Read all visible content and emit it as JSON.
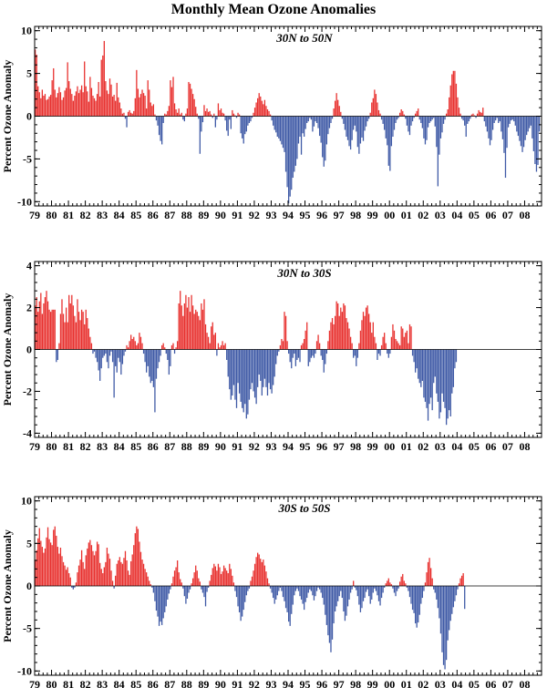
{
  "title": "Monthly Mean Ozone Anomalies",
  "colors": {
    "positive": "#e8312f",
    "negative": "#3f5aa6",
    "frame": "#000000"
  },
  "chart_data": [
    {
      "type": "bar",
      "label": "30N to 50N",
      "ylabel": "Percent Ozone Anomaly",
      "ylim": [
        -10.5,
        10.5
      ],
      "yticks": [
        -10,
        -5,
        0,
        5,
        10
      ],
      "xlim": [
        1979,
        2009
      ],
      "xticks": [
        "79",
        "80",
        "81",
        "82",
        "83",
        "84",
        "85",
        "86",
        "87",
        "88",
        "89",
        "90",
        "91",
        "92",
        "93",
        "94",
        "95",
        "96",
        "97",
        "98",
        "99",
        "00",
        "01",
        "02",
        "03",
        "04",
        "05",
        "06",
        "07",
        "08"
      ],
      "x_start": "1979-01",
      "monthly_values": [
        7.8,
        7.2,
        3.5,
        2.8,
        2.1,
        3.1,
        2.4,
        2.6,
        1.9,
        2.0,
        2.3,
        2.5,
        4.2,
        5.6,
        3.1,
        2.2,
        2.7,
        3.4,
        2.8,
        1.9,
        2.2,
        3.0,
        3.3,
        6.3,
        4.1,
        3.2,
        2.6,
        1.8,
        2.4,
        2.9,
        3.5,
        2.7,
        3.1,
        3.6,
        2.8,
        6.4,
        3.5,
        2.9,
        1.7,
        4.6,
        3.3,
        2.4,
        2.1,
        1.8,
        2.6,
        4.0,
        2.3,
        6.6,
        7.1,
        8.8,
        4.1,
        3.0,
        2.6,
        4.4,
        3.7,
        2.3,
        2.5,
        1.8,
        3.9,
        2.2,
        1.6,
        0.9,
        0.3,
        0.4,
        -0.3,
        -1.3,
        0.5,
        0.7,
        0.4,
        0.3,
        0.6,
        2.1,
        5.4,
        3.2,
        2.2,
        2.6,
        3.1,
        2.7,
        2.4,
        0.9,
        4.2,
        3.1,
        1.6,
        1.2,
        1.4,
        0.2,
        -0.5,
        -1.1,
        -2.2,
        -2.9,
        -3.3,
        -0.8,
        0.3,
        0.2,
        0.6,
        1.2,
        4.2,
        3.4,
        4.6,
        1.5,
        0.8,
        0.4,
        0.9,
        0.2,
        0.4,
        -0.4,
        -0.6,
        0.3,
        0.9,
        4.0,
        3.8,
        3.2,
        2.6,
        2.0,
        1.1,
        0.3,
        -0.3,
        -4.4,
        -1.8,
        -0.7,
        1.3,
        0.6,
        0.9,
        0.5,
        0.6,
        0.2,
        -0.2,
        0.3,
        -1.3,
        -0.4,
        1.5,
        0.7,
        0.9,
        0.4,
        0.3,
        -0.5,
        -1.7,
        -2.3,
        -0.4,
        -1.5,
        0.7,
        0.3,
        0.1,
        -0.2,
        0.4,
        0.2,
        -2.0,
        -2.6,
        -3.2,
        -2.1,
        -1.8,
        -1.1,
        -0.8,
        -0.6,
        -0.2,
        0.4,
        1.0,
        1.6,
        2.1,
        2.7,
        2.3,
        1.8,
        1.4,
        1.9,
        1.2,
        0.8,
        0.6,
        0.2,
        -0.5,
        -1.1,
        -1.6,
        -1.9,
        -2.4,
        -2.6,
        -2.9,
        -3.3,
        -3.7,
        -4.2,
        -6.5,
        -8.3,
        -10.2,
        -9.4,
        -8.6,
        -7.2,
        -6.5,
        -5.8,
        -5.0,
        -3.2,
        -2.4,
        -4.5,
        -2.0,
        -2.4,
        -1.5,
        -0.8,
        -0.6,
        -0.2,
        -0.4,
        -1.8,
        -1.2,
        -0.6,
        -0.8,
        -1.4,
        -2.3,
        -3.1,
        -4.8,
        -5.9,
        -5.2,
        -3.3,
        -2.1,
        -1.4,
        -0.8,
        -0.3,
        0.9,
        1.8,
        2.7,
        1.9,
        1.2,
        0.5,
        -0.3,
        -0.9,
        -1.6,
        -2.4,
        -2.8,
        -3.5,
        -3.9,
        -2.8,
        -1.6,
        -1.1,
        -1.8,
        -3.6,
        -4.4,
        -3.2,
        -2.5,
        -2.9,
        -1.7,
        -1.2,
        -0.6,
        -0.3,
        0.4,
        1.6,
        2.1,
        3.1,
        2.6,
        1.6,
        0.7,
        0.3,
        -0.4,
        -0.9,
        -1.6,
        -2.6,
        -3.4,
        -5.8,
        -6.4,
        -3.5,
        -2.4,
        -1.6,
        -0.8,
        -0.4,
        -0.2,
        0.4,
        0.8,
        0.6,
        0.2,
        -0.3,
        -1.1,
        -1.8,
        -2.2,
        -1.1,
        -0.6,
        -0.2,
        0.3,
        0.6,
        0.9,
        -0.4,
        -0.8,
        -1.4,
        -2.6,
        -3.3,
        -2.8,
        -1.3,
        -0.8,
        -0.6,
        -0.4,
        -0.2,
        -1.2,
        -3.6,
        -8.2,
        -4.5,
        -2.6,
        -1.9,
        -0.9,
        -0.4,
        0.3,
        0.8,
        2.2,
        3.6,
        4.9,
        5.3,
        5.3,
        3.8,
        2.2,
        1.0,
        0.3,
        -0.3,
        -0.5,
        -1.1,
        -2.4,
        -0.9,
        -0.6,
        -0.3,
        0.2,
        0.3,
        0.1,
        -0.2,
        0.3,
        0.7,
        0.5,
        0.4,
        1.0,
        -0.6,
        -1.2,
        -1.8,
        -2.6,
        -3.4,
        -2.8,
        -1.6,
        -0.8,
        -0.5,
        -0.2,
        -0.8,
        -0.6,
        -1.8,
        -2.7,
        -4.3,
        -7.2,
        -3.7,
        -1.3,
        -0.9,
        -0.5,
        -0.4,
        -0.6,
        -1.1,
        -1.8,
        -2.3,
        -2.9,
        -3.5,
        -4.2,
        -3.6,
        -2.8,
        -2.2,
        -1.8,
        -1.4,
        -1.1,
        -2.6,
        -4.1,
        -5.6,
        -6.5,
        -5.7,
        -1.8
      ]
    },
    {
      "type": "bar",
      "label": "30N to 30S",
      "ylabel": "Percent Ozone Anomaly",
      "ylim": [
        -4.2,
        4.2
      ],
      "yticks": [
        -4,
        -2,
        0,
        2,
        4
      ],
      "xlim": [
        1979,
        2009
      ],
      "xticks": [
        "79",
        "80",
        "81",
        "82",
        "83",
        "84",
        "85",
        "86",
        "87",
        "88",
        "89",
        "90",
        "91",
        "92",
        "93",
        "94",
        "95",
        "96",
        "97",
        "98",
        "99",
        "00",
        "01",
        "02",
        "03",
        "04",
        "05",
        "06",
        "07",
        "08"
      ],
      "x_start": "1979-01",
      "monthly_values": [
        2.1,
        2.5,
        1.8,
        2.3,
        2.7,
        1.7,
        2.2,
        2.5,
        2.8,
        2.3,
        1.9,
        1.8,
        1.9,
        1.9,
        1.9,
        -0.6,
        -0.5,
        0.3,
        1.7,
        2.4,
        1.7,
        1.3,
        2.0,
        1.3,
        2.6,
        2.2,
        2.6,
        2.1,
        1.6,
        1.3,
        2.4,
        1.8,
        1.4,
        1.9,
        1.8,
        1.2,
        1.9,
        1.5,
        1.0,
        0.6,
        0.3,
        -0.2,
        -0.1,
        -0.4,
        -0.6,
        -1.0,
        -1.5,
        -0.9,
        -0.4,
        -0.3,
        -0.2,
        -0.6,
        -0.9,
        -0.3,
        -0.1,
        -0.6,
        -2.3,
        -0.8,
        -1.1,
        -0.4,
        -0.6,
        -1.2,
        -0.7,
        -0.3,
        -0.1,
        0.2,
        0.1,
        0.4,
        0.7,
        0.5,
        0.6,
        0.4,
        0.2,
        0.3,
        0.8,
        0.6,
        0.3,
        -0.2,
        -0.6,
        -1.1,
        -0.8,
        -1.3,
        -1.6,
        -1.5,
        -1.8,
        -3.0,
        -1.4,
        -0.9,
        -0.6,
        -0.3,
        0.2,
        0.3,
        0.1,
        -0.2,
        -0.5,
        -1.2,
        -0.8,
        0.2,
        0.3,
        -0.2,
        0.1,
        0.4,
        2.2,
        2.8,
        2.1,
        1.6,
        2.2,
        2.6,
        2.0,
        2.5,
        1.8,
        2.6,
        2.1,
        1.7,
        1.9,
        1.8,
        1.6,
        1.4,
        2.2,
        1.9,
        2.4,
        1.2,
        0.8,
        0.6,
        0.3,
        1.1,
        1.3,
        0.7,
        0.8,
        -0.3,
        0.3,
        0.1,
        0.2,
        0.4,
        0.2,
        0.3,
        -0.5,
        -1.3,
        -1.9,
        -2.4,
        -2.2,
        -1.7,
        -2.4,
        -2.8,
        -1.6,
        -2.1,
        -2.5,
        -2.8,
        -3.0,
        -2.6,
        -3.3,
        -3.1,
        -2.4,
        -1.9,
        -1.6,
        -2.0,
        -2.3,
        -2.6,
        -1.8,
        -1.2,
        -1.5,
        -2.2,
        -1.8,
        -1.4,
        -1.8,
        -2.2,
        -1.6,
        -1.9,
        -2.1,
        -1.7,
        -1.3,
        -0.7,
        -0.3,
        -0.1,
        0.2,
        0.5,
        0.4,
        1.8,
        1.6,
        0.4,
        -0.2,
        -0.6,
        -0.9,
        -0.4,
        -0.2,
        -0.8,
        -0.5,
        -0.4,
        -0.6,
        0.2,
        0.3,
        0.5,
        0.9,
        1.3,
        -0.8,
        -0.6,
        -0.4,
        -0.3,
        -0.4,
        -0.2,
        0.4,
        0.7,
        0.3,
        -0.3,
        -0.5,
        -1.1,
        -0.7,
        -0.2,
        0.4,
        0.9,
        1.3,
        1.5,
        1.2,
        1.6,
        2.3,
        2.2,
        1.6,
        2.0,
        1.8,
        2.2,
        2.1,
        1.5,
        1.3,
        1.0,
        0.6,
        0.3,
        -0.4,
        -0.3,
        -0.8,
        -0.4,
        0.3,
        0.9,
        1.4,
        1.8,
        1.6,
        2.0,
        2.1,
        1.7,
        1.3,
        0.8,
        1.3,
        0.6,
        0.3,
        -0.5,
        -0.2,
        -0.3,
        0.2,
        0.6,
        0.8,
        0.3,
        -0.2,
        -0.4,
        -0.2,
        0.6,
        1.2,
        0.9,
        0.5,
        0.4,
        0.3,
        0.2,
        1.1,
        1.0,
        0.6,
        0.8,
        0.9,
        0.3,
        1.2,
        1.1,
        -0.3,
        -0.6,
        -1.1,
        -0.9,
        -1.4,
        -1.6,
        -1.8,
        -1.5,
        -2.3,
        -2.5,
        -2.8,
        -3.4,
        -2.6,
        -2.3,
        -2.9,
        -1.6,
        -1.3,
        -2.1,
        -2.5,
        -3.3,
        -3.0,
        -2.1,
        -2.5,
        -2.8,
        -3.6,
        -3.3,
        -2.9,
        -3.2,
        -2.1,
        -1.8,
        -0.9,
        -0.6
      ]
    },
    {
      "type": "bar",
      "label": "30S to 50S",
      "ylabel": "Percent Ozone Anomaly",
      "ylim": [
        -10.5,
        10.5
      ],
      "yticks": [
        -10,
        -5,
        0,
        5,
        10
      ],
      "xlim": [
        1979,
        2009
      ],
      "xticks": [
        "79",
        "80",
        "81",
        "82",
        "83",
        "84",
        "85",
        "86",
        "87",
        "88",
        "89",
        "90",
        "91",
        "92",
        "93",
        "94",
        "95",
        "96",
        "97",
        "98",
        "99",
        "00",
        "01",
        "02",
        "03",
        "04",
        "05",
        "06",
        "07",
        "08"
      ],
      "x_start": "1979-01",
      "monthly_values": [
        3.1,
        4.2,
        5.6,
        6.8,
        5.3,
        4.6,
        3.9,
        4.4,
        5.7,
        6.9,
        5.5,
        5.1,
        4.8,
        6.6,
        7.0,
        5.9,
        4.6,
        3.8,
        4.5,
        3.5,
        2.8,
        2.4,
        1.9,
        2.2,
        1.5,
        1.0,
        -0.2,
        -0.4,
        -0.2,
        0.4,
        1.6,
        2.4,
        3.1,
        4.2,
        2.8,
        2.0,
        3.6,
        4.4,
        5.1,
        5.4,
        4.8,
        4.1,
        3.6,
        4.1,
        5.2,
        4.9,
        2.7,
        2.0,
        1.5,
        2.2,
        2.8,
        4.5,
        3.8,
        3.2,
        1.8,
        0.6,
        -0.3,
        1.2,
        2.6,
        3.0,
        3.4,
        2.8,
        2.6,
        3.3,
        4.1,
        3.0,
        1.8,
        1.3,
        2.9,
        3.7,
        4.8,
        6.2,
        7.0,
        6.7,
        5.2,
        4.0,
        3.1,
        2.6,
        2.0,
        1.6,
        1.1,
        0.6,
        0.2,
        -0.2,
        -0.8,
        -1.8,
        -2.9,
        -3.6,
        -4.7,
        -4.2,
        -4.6,
        -3.8,
        -3.1,
        -2.4,
        -1.6,
        -0.9,
        -0.4,
        0.3,
        1.1,
        1.8,
        2.2,
        3.0,
        1.6,
        0.8,
        0.4,
        -0.3,
        -1.2,
        -2.1,
        -1.5,
        -0.8,
        -0.4,
        0.3,
        0.9,
        1.6,
        2.4,
        1.8,
        0.9,
        0.5,
        -0.4,
        -0.8,
        -1.3,
        -2.4,
        -0.7,
        -0.2,
        0.6,
        1.3,
        2.1,
        2.6,
        2.3,
        1.8,
        2.6,
        2.2,
        1.4,
        1.7,
        2.4,
        2.1,
        1.8,
        1.5,
        2.6,
        2.0,
        1.2,
        0.4,
        -0.6,
        -1.3,
        -2.4,
        -3.1,
        -4.1,
        -3.6,
        -2.8,
        -1.9,
        -1.1,
        -0.6,
        -0.3,
        0.6,
        1.1,
        1.8,
        2.6,
        3.4,
        3.9,
        3.7,
        3.2,
        2.8,
        3.1,
        2.4,
        1.7,
        0.9,
        0.3,
        -0.3,
        -0.8,
        -1.4,
        -2.1,
        -1.6,
        -1.1,
        -0.6,
        -0.2,
        -0.6,
        -1.3,
        -1.8,
        -2.6,
        -3.1,
        -4.2,
        -4.7,
        -3.3,
        -2.2,
        -1.1,
        -0.6,
        -0.3,
        -0.6,
        -1.2,
        -1.6,
        -2.1,
        -2.8,
        -1.9,
        -1.4,
        -0.8,
        -0.4,
        -0.6,
        -1.1,
        -1.7,
        -1.2,
        -0.6,
        -0.2,
        -0.4,
        -0.8,
        -1.4,
        -2.2,
        -3.4,
        -4.6,
        -5.8,
        -6.7,
        -7.8,
        -6.3,
        -4.4,
        -3.0,
        -2.4,
        -1.8,
        -1.2,
        -0.6,
        -1.4,
        -3.0,
        -4.1,
        -3.5,
        -2.4,
        -1.6,
        -0.8,
        -0.4,
        0.6,
        -0.2,
        -0.5,
        -1.2,
        -2.2,
        -3.1,
        -2.6,
        -1.8,
        -1.4,
        -0.7,
        -0.4,
        -1.2,
        -2.1,
        -1.6,
        -0.8,
        -0.3,
        -0.6,
        -1.1,
        -1.8,
        -2.3,
        -1.4,
        -0.8,
        -0.2,
        0.3,
        0.6,
        0.9,
        0.4,
        0.2,
        -0.3,
        -0.8,
        -1.2,
        -0.6,
        -0.3,
        0.5,
        1.1,
        1.4,
        0.6,
        0.3,
        -0.2,
        -0.6,
        -1.3,
        -2.1,
        -2.8,
        -3.2,
        -4.4,
        -4.9,
        -4.3,
        -3.4,
        -2.1,
        -1.4,
        -0.6,
        0.4,
        1.6,
        2.8,
        3.3,
        2.1,
        0.9,
        -0.4,
        -0.8,
        -1.6,
        -2.6,
        -3.8,
        -5.6,
        -7.8,
        -9.3,
        -9.8,
        -8.7,
        -6.4,
        -5.2,
        -4.1,
        -3.3,
        -2.5,
        -1.8,
        -1.1,
        -0.4,
        0.3,
        0.9,
        1.2,
        1.5,
        -2.7
      ]
    }
  ]
}
